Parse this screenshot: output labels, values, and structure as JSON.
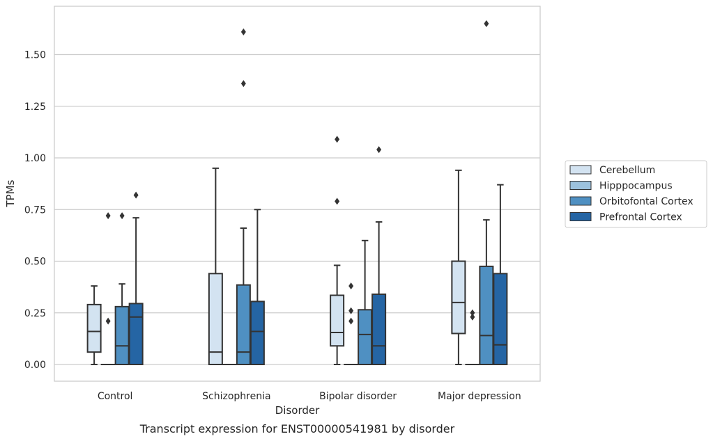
{
  "chart_data": {
    "type": "box",
    "title": "",
    "xlabel": "Disorder",
    "ylabel": "TPMs",
    "caption": "Transcript expression for ENST00000541981 by disorder",
    "categories": [
      "Control",
      "Schizophrenia",
      "Bipolar disorder",
      "Major depression"
    ],
    "ylim": [
      -0.08,
      1.73
    ],
    "yticks": [
      0.0,
      0.25,
      0.5,
      0.75,
      1.0,
      1.25,
      1.5
    ],
    "ytick_labels": [
      "0.00",
      "0.25",
      "0.50",
      "0.75",
      "1.00",
      "1.25",
      "1.50"
    ],
    "grid": "horizontal",
    "legend_position": "right",
    "series": [
      {
        "name": "Cerebellum",
        "color": "#d3e3f1",
        "boxes": [
          {
            "whisker_low": 0.0,
            "q1": 0.06,
            "median": 0.16,
            "q3": 0.29,
            "whisker_high": 0.38,
            "outliers": []
          },
          {
            "whisker_low": 0.0,
            "q1": 0.0,
            "median": 0.06,
            "q3": 0.44,
            "whisker_high": 0.95,
            "outliers": []
          },
          {
            "whisker_low": 0.0,
            "q1": 0.09,
            "median": 0.155,
            "q3": 0.335,
            "whisker_high": 0.48,
            "outliers": [
              1.09,
              0.79
            ]
          },
          {
            "whisker_low": 0.0,
            "q1": 0.15,
            "median": 0.3,
            "q3": 0.5,
            "whisker_high": 0.94,
            "outliers": []
          }
        ]
      },
      {
        "name": "Hipppocampus",
        "color": "#9cc2de",
        "boxes": [
          {
            "whisker_low": 0.0,
            "q1": 0.0,
            "median": 0.0,
            "q3": 0.0,
            "whisker_high": 0.0,
            "outliers": [
              0.72,
              0.21
            ]
          },
          {
            "whisker_low": 0.0,
            "q1": 0.0,
            "median": 0.0,
            "q3": 0.0,
            "whisker_high": 0.0,
            "outliers": []
          },
          {
            "whisker_low": 0.0,
            "q1": 0.0,
            "median": 0.0,
            "q3": 0.0,
            "whisker_high": 0.0,
            "outliers": [
              0.38,
              0.26,
              0.21
            ]
          },
          {
            "whisker_low": 0.0,
            "q1": 0.0,
            "median": 0.0,
            "q3": 0.0,
            "whisker_high": 0.0,
            "outliers": [
              0.25,
              0.23
            ]
          }
        ]
      },
      {
        "name": "Orbitofontal Cortex",
        "color": "#4f90c2",
        "boxes": [
          {
            "whisker_low": 0.0,
            "q1": 0.0,
            "median": 0.09,
            "q3": 0.28,
            "whisker_high": 0.39,
            "outliers": [
              0.72
            ]
          },
          {
            "whisker_low": 0.0,
            "q1": 0.0,
            "median": 0.06,
            "q3": 0.385,
            "whisker_high": 0.66,
            "outliers": [
              1.61,
              1.36
            ]
          },
          {
            "whisker_low": 0.0,
            "q1": 0.0,
            "median": 0.145,
            "q3": 0.265,
            "whisker_high": 0.6,
            "outliers": []
          },
          {
            "whisker_low": 0.0,
            "q1": 0.0,
            "median": 0.14,
            "q3": 0.475,
            "whisker_high": 0.7,
            "outliers": [
              1.65
            ]
          }
        ]
      },
      {
        "name": "Prefrontal Cortex",
        "color": "#2565a4",
        "boxes": [
          {
            "whisker_low": 0.0,
            "q1": 0.0,
            "median": 0.23,
            "q3": 0.295,
            "whisker_high": 0.71,
            "outliers": [
              0.82
            ]
          },
          {
            "whisker_low": 0.0,
            "q1": 0.0,
            "median": 0.16,
            "q3": 0.305,
            "whisker_high": 0.75,
            "outliers": []
          },
          {
            "whisker_low": 0.0,
            "q1": 0.0,
            "median": 0.09,
            "q3": 0.34,
            "whisker_high": 0.69,
            "outliers": [
              1.04
            ]
          },
          {
            "whisker_low": 0.0,
            "q1": 0.0,
            "median": 0.095,
            "q3": 0.44,
            "whisker_high": 0.87,
            "outliers": []
          }
        ]
      }
    ]
  }
}
